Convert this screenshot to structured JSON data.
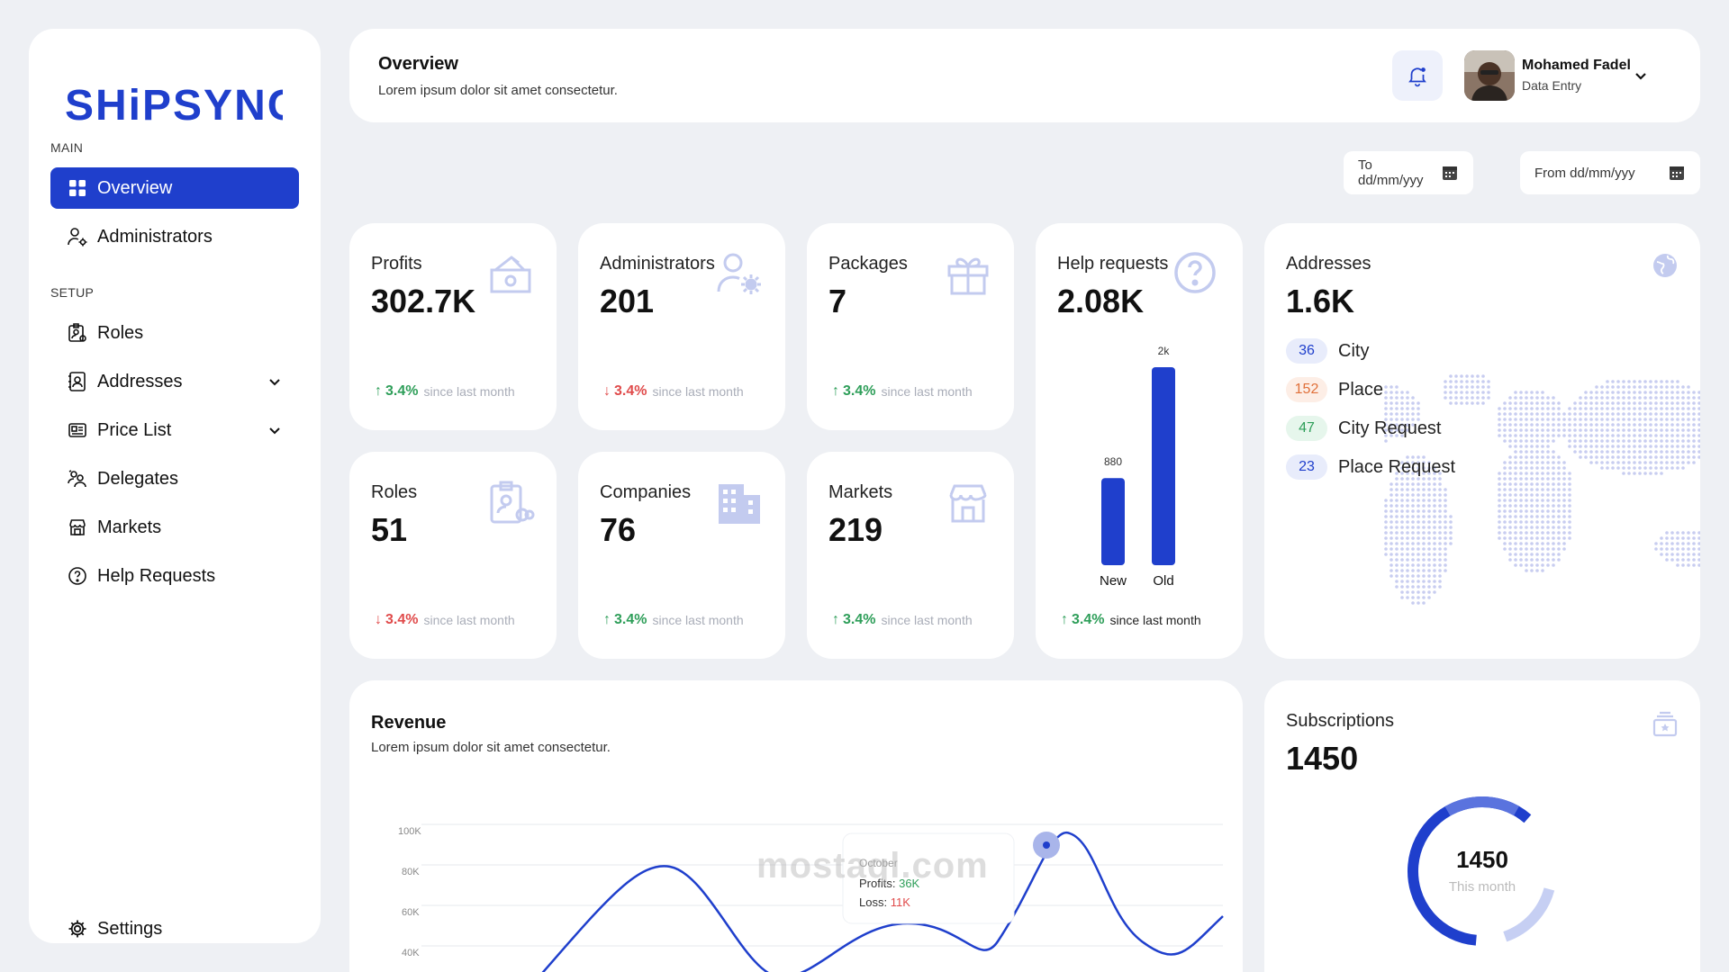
{
  "brand": {
    "logo_text": "SHiPSYNC",
    "accent": "#1f3fcc"
  },
  "sidebar": {
    "main_label": "MAIN",
    "setup_label": "SETUP",
    "items": [
      {
        "label": "Overview",
        "icon": "grid-icon",
        "active": true
      },
      {
        "label": "Administrators",
        "icon": "user-gear-icon"
      },
      {
        "label": "Roles",
        "icon": "badge-icon"
      },
      {
        "label": "Addresses",
        "icon": "address-book-icon",
        "expandable": true
      },
      {
        "label": "Price List",
        "icon": "price-list-icon",
        "expandable": true
      },
      {
        "label": "Delegates",
        "icon": "delegates-icon"
      },
      {
        "label": "Markets",
        "icon": "store-icon"
      },
      {
        "label": "Help Requests",
        "icon": "help-circle-icon"
      }
    ],
    "settings_label": "Settings"
  },
  "header": {
    "title": "Overview",
    "subtitle": "Lorem ipsum dolor sit amet consectetur.",
    "user_name": "Mohamed Fadel",
    "user_role": "Data Entry"
  },
  "filters": {
    "to_placeholder": "To dd/mm/yyy",
    "from_placeholder": "From dd/mm/yyy"
  },
  "stats": [
    {
      "label": "Profits",
      "value": "302.7K",
      "trend": "up",
      "pct": "3.4%",
      "since": "since last month"
    },
    {
      "label": "Administrators",
      "value": "201",
      "trend": "down",
      "pct": "3.4%",
      "since": "since last month"
    },
    {
      "label": "Packages",
      "value": "7",
      "trend": "up",
      "pct": "3.4%",
      "since": "since last month"
    },
    {
      "label": "Roles",
      "value": "51",
      "trend": "down",
      "pct": "3.4%",
      "since": "since last month"
    },
    {
      "label": "Companies",
      "value": "76",
      "trend": "up",
      "pct": "3.4%",
      "since": "since last month"
    },
    {
      "label": "Markets",
      "value": "219",
      "trend": "up",
      "pct": "3.4%",
      "since": "since last month"
    }
  ],
  "help_requests": {
    "label": "Help requests",
    "value": "2.08K",
    "pct": "3.4%",
    "since": "since last month",
    "chart_data": {
      "type": "bar",
      "categories": [
        "New",
        "Old"
      ],
      "values": [
        880,
        2000
      ],
      "value_labels": [
        "880",
        "2k"
      ],
      "ylim": [
        0,
        2000
      ]
    }
  },
  "addresses": {
    "label": "Addresses",
    "value": "1.6K",
    "items": [
      {
        "count": "36",
        "label": "City",
        "bg": "#e8ecfb",
        "fg": "#1f3fcc"
      },
      {
        "count": "152",
        "label": "Place",
        "bg": "#fdeee6",
        "fg": "#e0703a"
      },
      {
        "count": "47",
        "label": "City Request",
        "bg": "#e6f6ec",
        "fg": "#2e9e59"
      },
      {
        "count": "23",
        "label": "Place Request",
        "bg": "#e8ecfb",
        "fg": "#1f3fcc"
      }
    ]
  },
  "revenue": {
    "title": "Revenue",
    "subtitle": "Lorem ipsum dolor sit amet consectetur.",
    "y_ticks": [
      "100K",
      "80K",
      "60K",
      "40K"
    ],
    "tooltip": {
      "month": "October",
      "profits_label": "Profits:",
      "profits_value": "36K",
      "loss_label": "Loss:",
      "loss_value": "11K"
    }
  },
  "subscriptions": {
    "label": "Subscriptions",
    "value": "1450",
    "donut_value": "1450",
    "donut_caption": "This month"
  },
  "watermark": "mostaql.com"
}
